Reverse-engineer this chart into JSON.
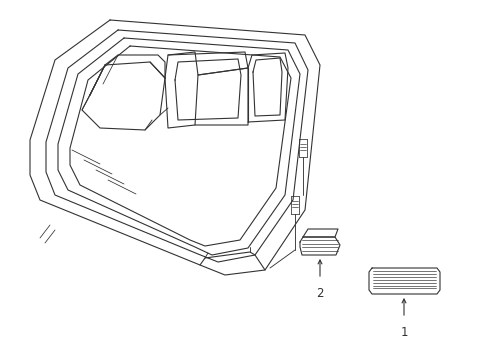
{
  "background_color": "#ffffff",
  "line_color": "#333333",
  "line_width": 0.8,
  "fig_width": 4.89,
  "fig_height": 3.6,
  "dpi": 100,
  "label_fontsize": 8.5
}
